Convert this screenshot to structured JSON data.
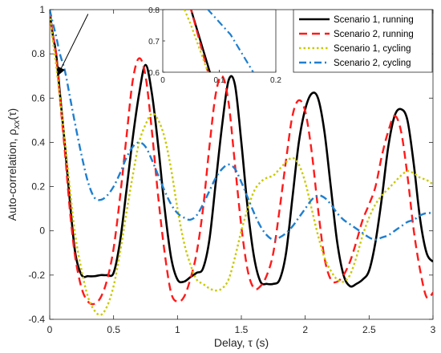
{
  "chart_data": {
    "type": "line",
    "xlabel": "Delay, τ (s)",
    "ylabel": "Auto-correlation, ρ_xx(τ)",
    "xlim": [
      0,
      3
    ],
    "ylim": [
      -0.4,
      1
    ],
    "xticks": [
      "0",
      "0.5",
      "1",
      "1.5",
      "2",
      "2.5",
      "3"
    ],
    "yticks": [
      "-0.4",
      "-0.2",
      "0",
      "0.2",
      "0.4",
      "0.6",
      "0.8",
      "1"
    ],
    "legend_position": "top-right",
    "series": [
      {
        "name": "Scenario 1, running",
        "color": "#000000",
        "style": "solid",
        "x": [
          0,
          0.02,
          0.05,
          0.08,
          0.12,
          0.16,
          0.2,
          0.25,
          0.3,
          0.35,
          0.4,
          0.45,
          0.5,
          0.55,
          0.6,
          0.65,
          0.7,
          0.75,
          0.8,
          0.85,
          0.9,
          0.95,
          1.0,
          1.05,
          1.1,
          1.15,
          1.2,
          1.25,
          1.3,
          1.35,
          1.4,
          1.45,
          1.5,
          1.55,
          1.6,
          1.65,
          1.7,
          1.75,
          1.8,
          1.85,
          1.9,
          1.95,
          2.0,
          2.05,
          2.1,
          2.15,
          2.2,
          2.25,
          2.3,
          2.35,
          2.4,
          2.45,
          2.5,
          2.55,
          2.6,
          2.65,
          2.7,
          2.75,
          2.8,
          2.85,
          2.9,
          2.95,
          3.0
        ],
        "y": [
          1.0,
          0.9,
          0.8,
          0.62,
          0.38,
          0.12,
          -0.1,
          -0.2,
          -0.205,
          -0.205,
          -0.2,
          -0.2,
          -0.19,
          -0.05,
          0.18,
          0.42,
          0.62,
          0.75,
          0.62,
          0.38,
          0.1,
          -0.12,
          -0.22,
          -0.23,
          -0.21,
          -0.19,
          -0.17,
          -0.04,
          0.22,
          0.48,
          0.68,
          0.66,
          0.4,
          0.1,
          -0.12,
          -0.23,
          -0.24,
          -0.24,
          -0.22,
          -0.1,
          0.15,
          0.4,
          0.55,
          0.62,
          0.6,
          0.45,
          0.2,
          -0.05,
          -0.2,
          -0.25,
          -0.24,
          -0.22,
          -0.18,
          -0.05,
          0.15,
          0.38,
          0.52,
          0.55,
          0.5,
          0.3,
          0.05,
          -0.1,
          -0.14
        ]
      },
      {
        "name": "Scenario 2, running",
        "color": "#ff1a1a",
        "style": "dashed",
        "x": [
          0,
          0.02,
          0.05,
          0.08,
          0.12,
          0.16,
          0.2,
          0.25,
          0.3,
          0.35,
          0.4,
          0.45,
          0.5,
          0.55,
          0.6,
          0.65,
          0.7,
          0.75,
          0.8,
          0.85,
          0.9,
          0.95,
          1.0,
          1.05,
          1.1,
          1.15,
          1.2,
          1.25,
          1.3,
          1.35,
          1.4,
          1.45,
          1.5,
          1.55,
          1.6,
          1.65,
          1.7,
          1.75,
          1.8,
          1.85,
          1.9,
          1.95,
          2.0,
          2.05,
          2.1,
          2.15,
          2.2,
          2.25,
          2.3,
          2.35,
          2.4,
          2.45,
          2.5,
          2.55,
          2.6,
          2.65,
          2.7,
          2.75,
          2.8,
          2.85,
          2.9,
          2.95,
          3.0
        ],
        "y": [
          1.0,
          0.9,
          0.8,
          0.6,
          0.35,
          0.08,
          -0.12,
          -0.26,
          -0.32,
          -0.33,
          -0.3,
          -0.22,
          -0.08,
          0.15,
          0.42,
          0.68,
          0.78,
          0.7,
          0.45,
          0.15,
          -0.1,
          -0.28,
          -0.32,
          -0.3,
          -0.22,
          -0.1,
          0.1,
          0.38,
          0.62,
          0.7,
          0.58,
          0.3,
          0.02,
          -0.18,
          -0.26,
          -0.25,
          -0.2,
          -0.1,
          0.1,
          0.32,
          0.52,
          0.59,
          0.54,
          0.36,
          0.1,
          -0.12,
          -0.22,
          -0.23,
          -0.2,
          -0.14,
          -0.05,
          0.05,
          0.12,
          0.2,
          0.34,
          0.45,
          0.52,
          0.45,
          0.25,
          0.0,
          -0.18,
          -0.3,
          -0.28
        ]
      },
      {
        "name": "Scenario 1, cycling",
        "color": "#c9c900",
        "style": "dotted",
        "x": [
          0,
          0.02,
          0.05,
          0.08,
          0.12,
          0.16,
          0.2,
          0.25,
          0.3,
          0.35,
          0.4,
          0.45,
          0.5,
          0.55,
          0.6,
          0.65,
          0.7,
          0.75,
          0.8,
          0.85,
          0.9,
          0.95,
          1.0,
          1.05,
          1.1,
          1.15,
          1.2,
          1.25,
          1.3,
          1.35,
          1.4,
          1.45,
          1.5,
          1.55,
          1.6,
          1.65,
          1.7,
          1.75,
          1.8,
          1.85,
          1.9,
          1.95,
          2.0,
          2.05,
          2.1,
          2.15,
          2.2,
          2.25,
          2.3,
          2.35,
          2.4,
          2.45,
          2.5,
          2.55,
          2.6,
          2.65,
          2.7,
          2.75,
          2.8,
          2.85,
          2.9,
          2.95,
          3.0
        ],
        "y": [
          1.0,
          0.88,
          0.75,
          0.6,
          0.4,
          0.18,
          -0.02,
          -0.18,
          -0.3,
          -0.36,
          -0.38,
          -0.34,
          -0.25,
          -0.1,
          0.08,
          0.25,
          0.4,
          0.48,
          0.53,
          0.5,
          0.42,
          0.28,
          0.1,
          -0.05,
          -0.15,
          -0.22,
          -0.24,
          -0.26,
          -0.27,
          -0.26,
          -0.22,
          -0.12,
          0.0,
          0.1,
          0.18,
          0.22,
          0.24,
          0.25,
          0.28,
          0.31,
          0.33,
          0.3,
          0.22,
          0.1,
          -0.02,
          -0.12,
          -0.18,
          -0.22,
          -0.23,
          -0.2,
          -0.12,
          -0.02,
          0.06,
          0.12,
          0.16,
          0.19,
          0.22,
          0.25,
          0.27,
          0.26,
          0.24,
          0.23,
          0.21
        ]
      },
      {
        "name": "Scenario 2, cycling",
        "color": "#1f7fcf",
        "style": "dashdot",
        "x": [
          0,
          0.02,
          0.05,
          0.08,
          0.12,
          0.16,
          0.2,
          0.25,
          0.3,
          0.35,
          0.4,
          0.45,
          0.5,
          0.55,
          0.6,
          0.65,
          0.7,
          0.75,
          0.8,
          0.85,
          0.9,
          0.95,
          1.0,
          1.05,
          1.1,
          1.15,
          1.2,
          1.25,
          1.3,
          1.35,
          1.4,
          1.45,
          1.5,
          1.55,
          1.6,
          1.65,
          1.7,
          1.75,
          1.8,
          1.85,
          1.9,
          1.95,
          2.0,
          2.05,
          2.1,
          2.15,
          2.2,
          2.25,
          2.3,
          2.35,
          2.4,
          2.45,
          2.5,
          2.55,
          2.6,
          2.65,
          2.7,
          2.75,
          2.8,
          2.85,
          2.9,
          2.95,
          3.0
        ],
        "y": [
          1.0,
          0.95,
          0.88,
          0.8,
          0.72,
          0.6,
          0.48,
          0.34,
          0.22,
          0.15,
          0.14,
          0.16,
          0.2,
          0.26,
          0.33,
          0.38,
          0.4,
          0.38,
          0.32,
          0.25,
          0.18,
          0.12,
          0.08,
          0.06,
          0.05,
          0.07,
          0.12,
          0.18,
          0.24,
          0.28,
          0.3,
          0.28,
          0.22,
          0.15,
          0.08,
          0.02,
          -0.02,
          -0.04,
          -0.03,
          -0.01,
          0.02,
          0.06,
          0.1,
          0.14,
          0.16,
          0.15,
          0.12,
          0.08,
          0.05,
          0.03,
          0.01,
          -0.01,
          -0.03,
          -0.04,
          -0.03,
          -0.02,
          0.0,
          0.02,
          0.04,
          0.05,
          0.07,
          0.08,
          0.08
        ]
      }
    ],
    "inset": {
      "xlim": [
        0,
        0.2
      ],
      "ylim": [
        0.6,
        0.8
      ],
      "xticks": [
        "0",
        "0.1",
        "0.2"
      ],
      "yticks": [
        "0.6",
        "0.7",
        "0.8"
      ]
    },
    "annotation": {
      "type": "arrow",
      "from": [
        0.3,
        0.98
      ],
      "to": [
        0.06,
        0.7
      ]
    }
  }
}
